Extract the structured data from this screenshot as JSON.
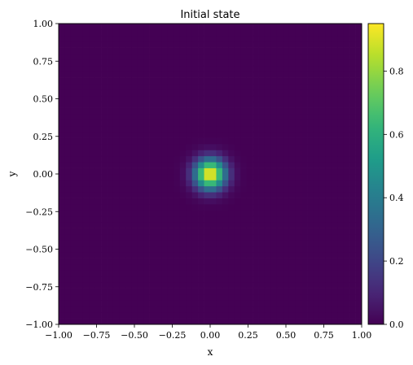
{
  "chart_data": {
    "type": "heatmap",
    "title": "Initial state",
    "xlabel": "x",
    "ylabel": "y",
    "xlim": [
      -1.0,
      1.0
    ],
    "ylim": [
      -1.0,
      1.0
    ],
    "grid": {
      "nx": 50,
      "ny": 50,
      "x_range": [
        -1.0,
        1.0
      ],
      "y_range": [
        -1.0,
        1.0
      ],
      "field": "gaussian",
      "center": [
        0.0,
        0.0
      ],
      "sigma": 0.07,
      "amplitude": 0.96
    },
    "x_ticks": [
      "−1.00",
      "−0.75",
      "−0.50",
      "−0.25",
      "0.00",
      "0.25",
      "0.50",
      "0.75",
      "1.00"
    ],
    "y_ticks": [
      "1.00",
      "0.75",
      "0.50",
      "0.25",
      "0.00",
      "−0.25",
      "−0.50",
      "−0.75",
      "−1.00"
    ],
    "x_tick_values": [
      -1.0,
      -0.75,
      -0.5,
      -0.25,
      0.0,
      0.25,
      0.5,
      0.75,
      1.0
    ],
    "y_tick_values": [
      1.0,
      0.75,
      0.5,
      0.25,
      0.0,
      -0.25,
      -0.5,
      -0.75,
      -1.0
    ],
    "colorbar": {
      "colormap": "viridis",
      "vmin": 0.0,
      "vmax": 0.95,
      "ticks": [
        "0.0",
        "0.2",
        "0.4",
        "0.6",
        "0.8"
      ],
      "tick_values": [
        0.0,
        0.2,
        0.4,
        0.6,
        0.8
      ]
    }
  }
}
